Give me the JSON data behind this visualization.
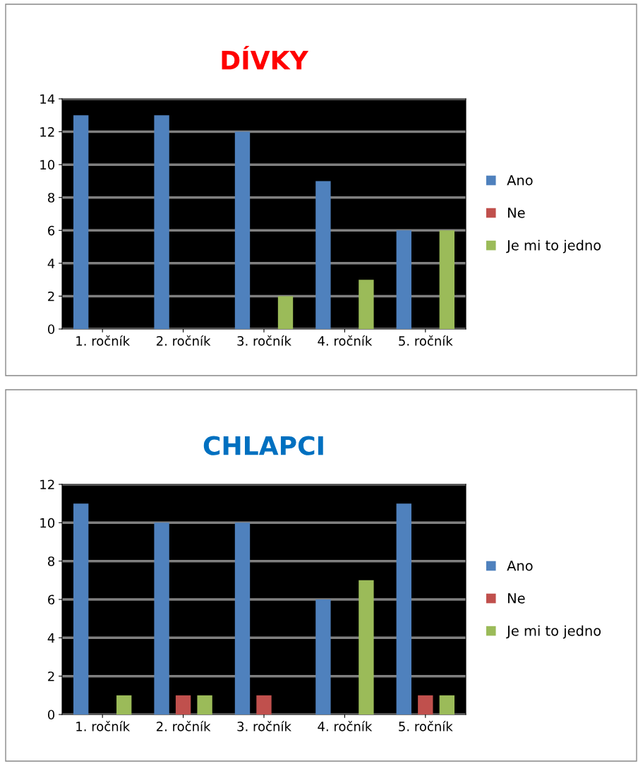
{
  "chart_data": [
    {
      "type": "bar",
      "title": "DÍVKY",
      "categories": [
        "1. ročník",
        "2. ročník",
        "3. ročník",
        "4. ročník",
        "5. ročník"
      ],
      "series": [
        {
          "name": "Ano",
          "color": "#4f81bd",
          "values": [
            13,
            13,
            12,
            9,
            6
          ]
        },
        {
          "name": "Ne",
          "color": "#c0504d",
          "values": [
            0,
            0,
            0,
            0,
            0
          ]
        },
        {
          "name": "Je mi to jedno",
          "color": "#9bbb59",
          "values": [
            0,
            0,
            2,
            3,
            6
          ]
        }
      ],
      "ylim": [
        0,
        14
      ],
      "yticks": [
        0,
        2,
        4,
        6,
        8,
        10,
        12,
        14
      ],
      "grid": "y",
      "legend": "right"
    },
    {
      "type": "bar",
      "title": "CHLAPCI",
      "categories": [
        "1. ročník",
        "2. ročník",
        "3. ročník",
        "4. ročník",
        "5. ročník"
      ],
      "series": [
        {
          "name": "Ano",
          "color": "#4f81bd",
          "values": [
            11,
            10,
            10,
            6,
            11
          ]
        },
        {
          "name": "Ne",
          "color": "#c0504d",
          "values": [
            0,
            1,
            1,
            0,
            1
          ]
        },
        {
          "name": "Je mi to jedno",
          "color": "#9bbb59",
          "values": [
            1,
            1,
            0,
            7,
            1
          ]
        }
      ],
      "ylim": [
        0,
        12
      ],
      "yticks": [
        0,
        2,
        4,
        6,
        8,
        10,
        12
      ],
      "grid": "y",
      "legend": "right"
    }
  ]
}
